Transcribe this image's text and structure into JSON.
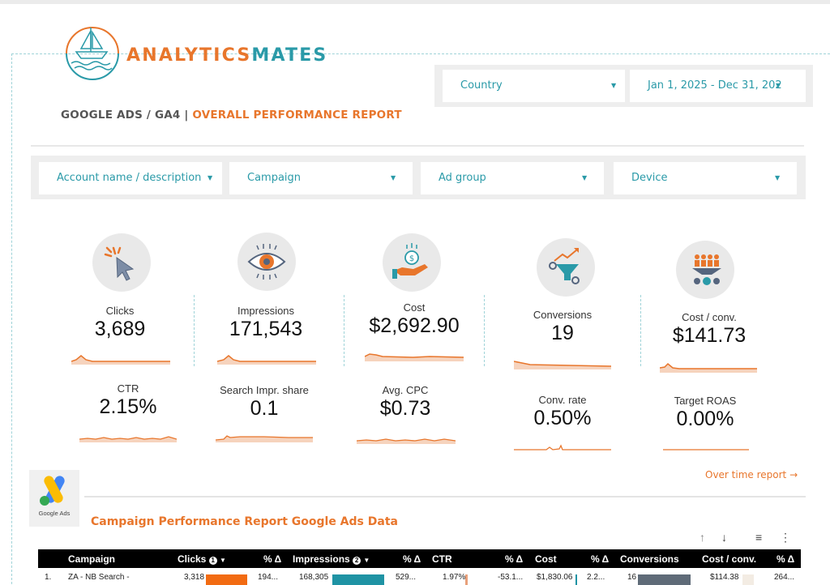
{
  "brand": {
    "part1": "ANALYTICS",
    "part2": "MATES",
    "accent": "#e8762c",
    "teal": "#2a9aa8"
  },
  "report": {
    "prefix": "GOOGLE ADS / GA4",
    "separator": " | ",
    "title": "OVERALL PERFORMANCE REPORT"
  },
  "top_filters": {
    "country": "Country",
    "date_range": "Jan 1, 2025 - Dec 31, 202"
  },
  "filters": {
    "account": "Account name / description",
    "campaign": "Campaign",
    "ad_group": "Ad group",
    "device": "Device"
  },
  "kpis": [
    {
      "label": "Clicks",
      "value": "3,689",
      "icon": "cursor-click-icon"
    },
    {
      "label": "Impressions",
      "value": "171,543",
      "icon": "eye-icon"
    },
    {
      "label": "Cost",
      "value": "$2,692.90",
      "icon": "money-hand-icon"
    },
    {
      "label": "Conversions",
      "value": "19",
      "icon": "funnel-icon"
    },
    {
      "label": "Cost / conv.",
      "value": "$141.73",
      "icon": "people-funnel-icon"
    }
  ],
  "kpis2": [
    {
      "label": "CTR",
      "value": "2.15%"
    },
    {
      "label": "Search Impr. share",
      "value": "0.1"
    },
    {
      "label": "Avg. CPC",
      "value": "$0.73"
    },
    {
      "label": "Conv. rate",
      "value": "0.50%"
    },
    {
      "label": "Target ROAS",
      "value": "0.00%"
    }
  ],
  "links": {
    "over_time": "Over time report →"
  },
  "gads": {
    "caption": "Google Ads",
    "section_title": "Campaign Performance Report Google Ads Data"
  },
  "table": {
    "columns": [
      "Campaign",
      "Clicks",
      "% Δ",
      "Impressions",
      "% Δ",
      "CTR",
      "% Δ",
      "Cost",
      "% Δ",
      "Conversions",
      "Cost / conv.",
      "% Δ"
    ],
    "sort_badges": [
      "1",
      "2"
    ],
    "rows": [
      {
        "index": "1.",
        "campaign": "ZA - NB Search - ",
        "clicks": "3,318",
        "clicks_delta": "194...",
        "impressions": "168,305",
        "impr_delta": "529...",
        "ctr": "1.97%",
        "ctr_delta": "-53.1...",
        "cost": "$1,830.06",
        "cost_delta": "2.2...",
        "conversions": "16",
        "cost_conv": "$114.38",
        "cc_delta": "264..."
      }
    ]
  }
}
